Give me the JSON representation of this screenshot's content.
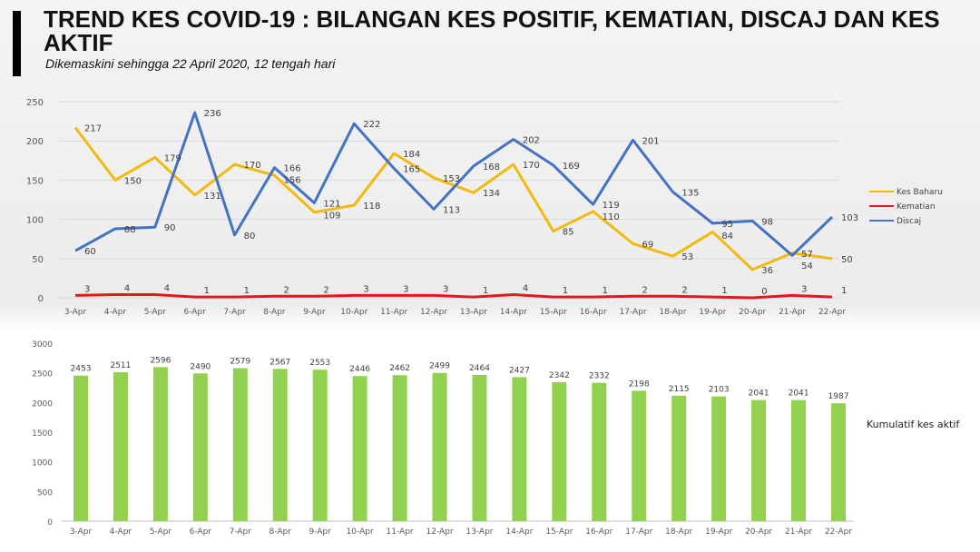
{
  "title": "TREND KES COVID-19 : BILANGAN KES POSITIF, KEMATIAN, DISCAJ DAN KES AKTIF",
  "subtitle": "Dikemaskini sehingga 22 April 2020, 12 tengah hari",
  "chart_data": [
    {
      "type": "line",
      "categories": [
        "3-Apr",
        "4-Apr",
        "5-Apr",
        "6-Apr",
        "7-Apr",
        "8-Apr",
        "9-Apr",
        "10-Apr",
        "11-Apr",
        "12-Apr",
        "13-Apr",
        "14-Apr",
        "15-Apr",
        "16-Apr",
        "17-Apr",
        "18-Apr",
        "19-Apr",
        "20-Apr",
        "21-Apr",
        "22-Apr"
      ],
      "ylim": [
        0,
        250
      ],
      "yticks": [
        0,
        50,
        100,
        150,
        200,
        250
      ],
      "grid": true,
      "legend": "right",
      "series": [
        {
          "name": "Kes Baharu",
          "color": "#f2b90f",
          "values": [
            217,
            150,
            179,
            131,
            170,
            156,
            109,
            118,
            184,
            153,
            134,
            170,
            85,
            110,
            69,
            53,
            84,
            36,
            57,
            50
          ]
        },
        {
          "name": "Kematian",
          "color": "#e3191c",
          "values": [
            3,
            4,
            4,
            1,
            1,
            2,
            2,
            3,
            3,
            3,
            1,
            4,
            1,
            1,
            2,
            2,
            1,
            0,
            3,
            1
          ]
        },
        {
          "name": "Discaj",
          "color": "#4472c4",
          "values": [
            60,
            88,
            90,
            236,
            80,
            166,
            121,
            222,
            165,
            113,
            168,
            202,
            169,
            119,
            201,
            135,
            95,
            98,
            54,
            103
          ]
        }
      ]
    },
    {
      "type": "bar",
      "categories": [
        "3-Apr",
        "4-Apr",
        "5-Apr",
        "6-Apr",
        "7-Apr",
        "8-Apr",
        "9-Apr",
        "10-Apr",
        "11-Apr",
        "12-Apr",
        "13-Apr",
        "14-Apr",
        "15-Apr",
        "16-Apr",
        "17-Apr",
        "18-Apr",
        "19-Apr",
        "20-Apr",
        "21-Apr",
        "22-Apr"
      ],
      "ylim": [
        0,
        3000
      ],
      "yticks": [
        0,
        500,
        1000,
        1500,
        2000,
        2500,
        3000
      ],
      "color": "#92d050",
      "legend": "right",
      "series": [
        {
          "name": "Kumulatif kes aktif",
          "values": [
            2453,
            2511,
            2596,
            2490,
            2579,
            2567,
            2553,
            2446,
            2462,
            2499,
            2464,
            2427,
            2342,
            2332,
            2198,
            2115,
            2103,
            2041,
            2041,
            1987
          ]
        }
      ]
    }
  ]
}
